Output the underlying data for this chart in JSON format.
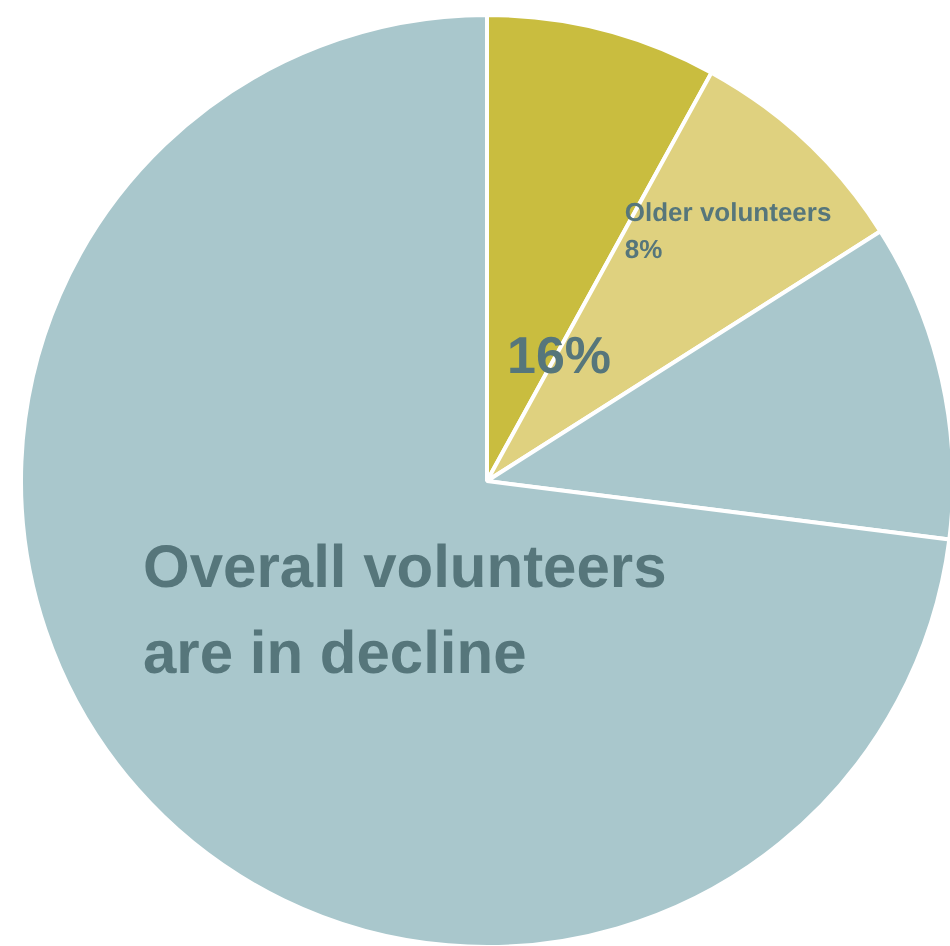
{
  "chart_data": {
    "type": "pie",
    "categories": [
      null,
      "Older volunteers",
      null,
      null
    ],
    "values": [
      8,
      8,
      11,
      73
    ],
    "colors": [
      "#c9bd3f",
      "#dfd17f",
      "#a9c7cc",
      "#a9c7cc"
    ],
    "value_labels": [
      null,
      "8%",
      null,
      null
    ],
    "annotations": [
      "16%",
      "Overall volunteers\nare in decline"
    ]
  }
}
